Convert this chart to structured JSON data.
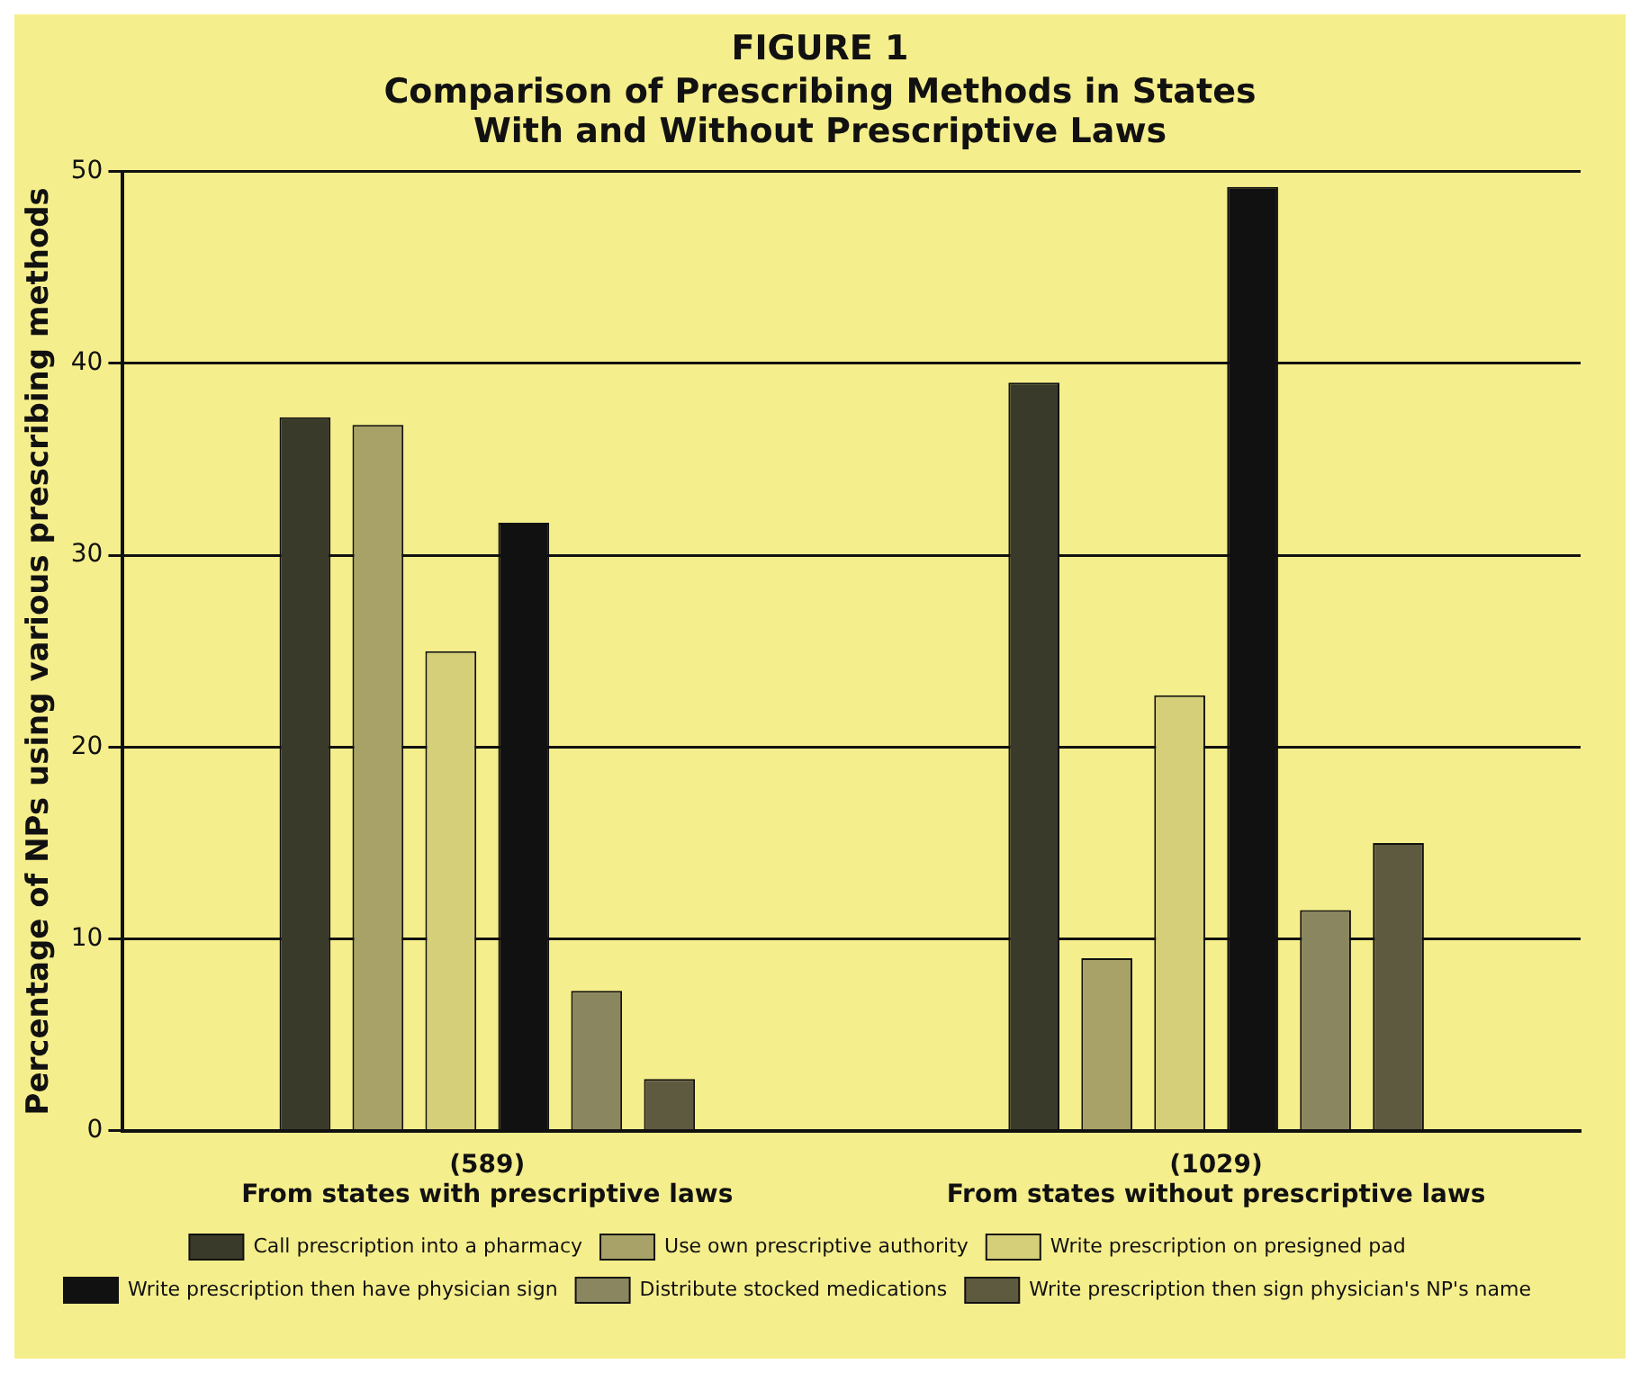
{
  "chart_data": {
    "type": "bar",
    "title": "FIGURE 1",
    "subtitle": "Comparison of Prescribing Methods in States With and Without Prescriptive Laws",
    "ylabel": "Percentage of NPs using various prescribing methods",
    "categories": [
      "(589)\nFrom states with prescriptive laws",
      "(1029)\nFrom states without prescriptive laws"
    ],
    "series": [
      {
        "name": "Call prescription into a pharmacy",
        "color": "#3a3a2a",
        "values": [
          37.2,
          39
        ]
      },
      {
        "name": "Use own prescriptive authority",
        "color": "#a8a268",
        "values": [
          36.8,
          9
        ]
      },
      {
        "name": "Write prescription on presigned pad",
        "color": "#d6cf7a",
        "values": [
          25,
          22.7
        ]
      },
      {
        "name": "Write prescription then have physician sign",
        "color": "#111111",
        "values": [
          31.7,
          49.2
        ]
      },
      {
        "name": "Distribute stocked medications",
        "color": "#8a8660",
        "values": [
          7.3,
          11.5
        ]
      },
      {
        "name": "Write prescription then sign physician's NP's name",
        "color": "#5e5a40",
        "values": [
          2.7,
          15
        ]
      }
    ],
    "ylim": [
      0,
      50
    ],
    "yticks": [
      0,
      10,
      20,
      30,
      40,
      50
    ],
    "grid": "y",
    "legend": "bottom"
  }
}
